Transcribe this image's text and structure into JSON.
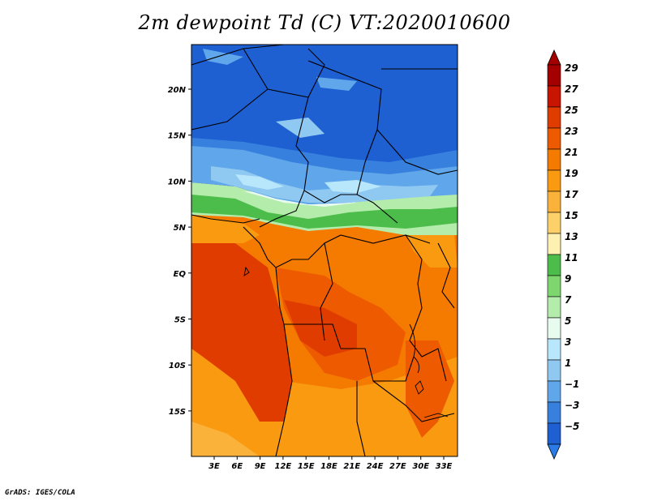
{
  "title": "2m dewpoint Td (C) VT:2020010600",
  "footer": "GrADS: IGES/COLA",
  "map": {
    "lat_ticks": [
      "20N",
      "15N",
      "10N",
      "5N",
      "EQ",
      "5S",
      "10S",
      "15S"
    ],
    "lon_ticks": [
      "3E",
      "6E",
      "9E",
      "12E",
      "15E",
      "18E",
      "21E",
      "24E",
      "27E",
      "30E",
      "33E"
    ]
  },
  "colorbar": {
    "labels": [
      "29",
      "27",
      "25",
      "23",
      "21",
      "19",
      "17",
      "15",
      "13",
      "11",
      "9",
      "7",
      "5",
      "3",
      "1",
      "−1",
      "−3",
      "−5"
    ],
    "colors": [
      "#a50000",
      "#c81400",
      "#e03c00",
      "#ee5a00",
      "#f57a00",
      "#f99a10",
      "#fbb23a",
      "#fdd06a",
      "#fef0b0",
      "#4cbd4a",
      "#7ed66e",
      "#b4ecac",
      "#e8fbef",
      "#b8e6fb",
      "#8fc9f2",
      "#5fa6ea",
      "#3780dd",
      "#1e5fd2"
    ]
  }
}
